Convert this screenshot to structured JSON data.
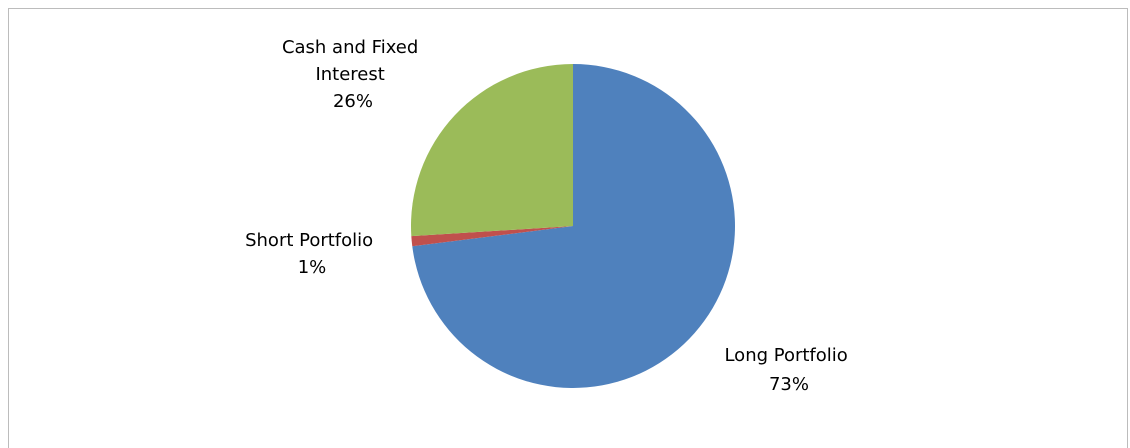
{
  "chart_data": {
    "type": "pie",
    "title": "",
    "slices": [
      {
        "name": "Long Portfolio",
        "value": 73,
        "label": "73%",
        "color": "#4f81bd"
      },
      {
        "name": "Short Portfolio",
        "value": 1,
        "label": "1%",
        "color": "#c0504d"
      },
      {
        "name": "Cash and Fixed Interest",
        "value": 26,
        "label": "26%",
        "color": "#9bbb59"
      }
    ],
    "legend": "none",
    "data_labels": "category name and percentage"
  },
  "labels": {
    "long": {
      "line1": "Long Portfolio",
      "line2": "73%"
    },
    "short": {
      "line1": "Short Portfolio",
      "line2": "1%"
    },
    "cash": {
      "line1": "Cash and Fixed",
      "line2": "Interest",
      "line3": "26%"
    }
  }
}
